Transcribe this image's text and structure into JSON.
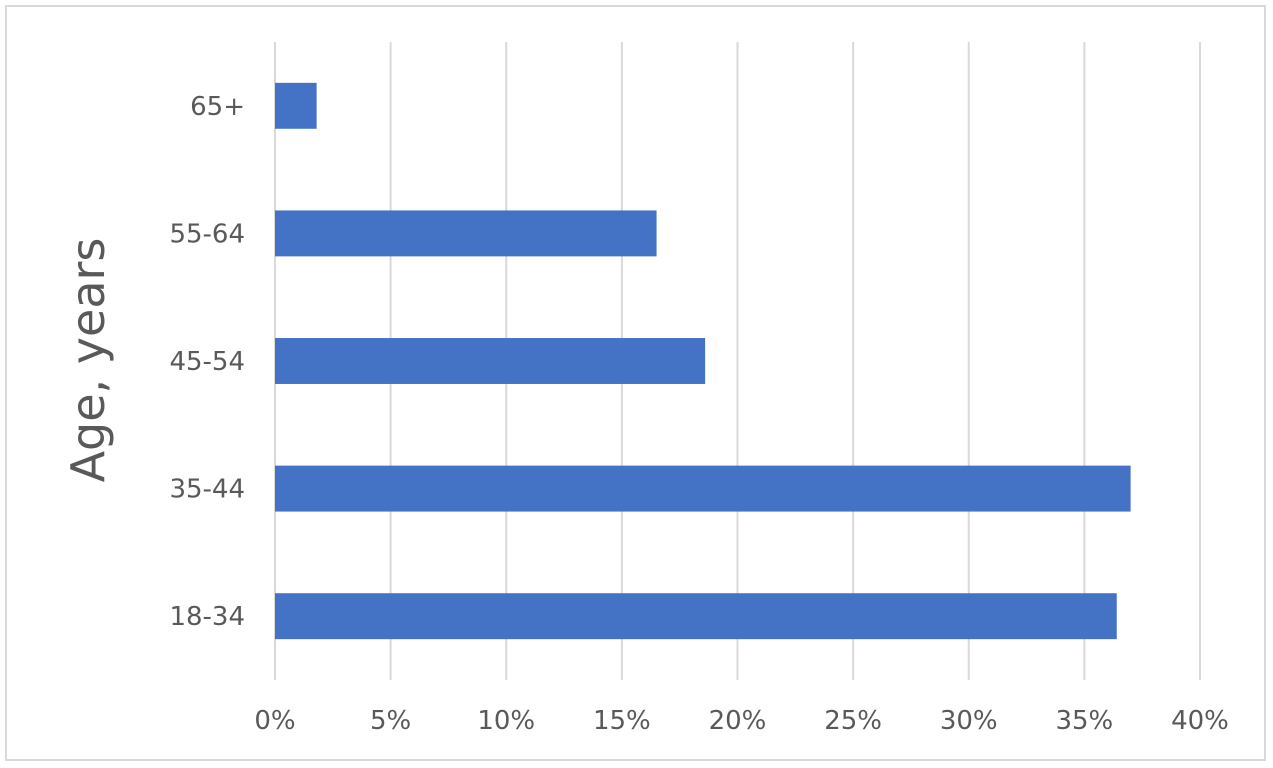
{
  "chart_data": {
    "type": "bar",
    "orientation": "horizontal",
    "categories": [
      "18-34",
      "35-44",
      "45-54",
      "55-64",
      "65+"
    ],
    "values": [
      36.4,
      37.0,
      18.6,
      16.5,
      1.8
    ],
    "title": "",
    "xlabel": "",
    "ylabel": "Age, years",
    "xlim": [
      0,
      40
    ],
    "xticks": [
      "0%",
      "5%",
      "10%",
      "15%",
      "20%",
      "25%",
      "30%",
      "35%",
      "40%"
    ],
    "grid": "vertical",
    "legend": "none",
    "bar_color": "#4472c4",
    "grid_color": "#d9d9d9"
  }
}
